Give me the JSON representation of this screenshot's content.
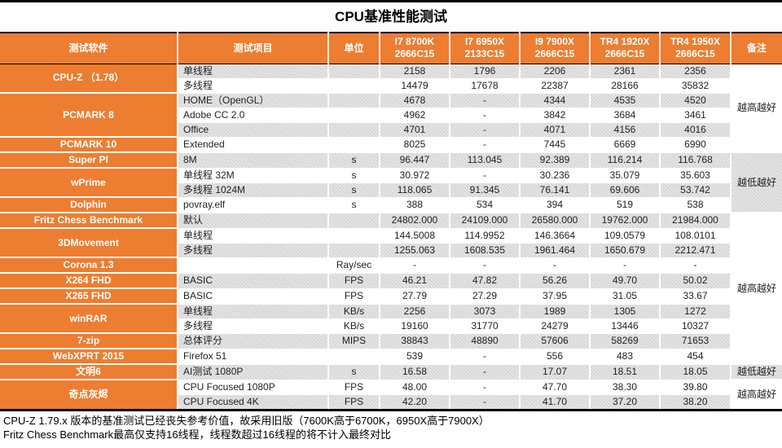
{
  "title": "CPU基准性能测试",
  "colors": {
    "header_orange": "#ED7D31",
    "row_gray": "#D8D8D8",
    "row_white": "#FFFFFF",
    "border_black": "#000000",
    "header_text": "#FFFFFF",
    "body_text": "#1F1F1F"
  },
  "footnotes": [
    "CPU-Z 1.79.x 版本的基准测试已经丧失参考价值，故采用旧版（7600K高于6700K，6950X高于7900X）",
    "Fritz Chess Benchmark最高仅支持16线程，线程数超过16线程的将不计入最终对比"
  ],
  "chart_data": {
    "type": "table",
    "title": "CPU基准性能测试",
    "column_headers": [
      "测试软件",
      "测试项目",
      "单位",
      "I7 8700K\n2666C15",
      "I7 6950X\n2133C15",
      "I9 7900X\n2666C15",
      "TR4 1920X\n2666C15",
      "TR4 1950X\n2666C15",
      "备注"
    ],
    "software_groups": [
      {
        "label": "CPU-Z （1.78）",
        "rows": 2
      },
      {
        "label": "PCMARK 8",
        "rows": 3
      },
      {
        "label": "PCMARK 10",
        "rows": 1
      },
      {
        "label": "Super PI",
        "rows": 1
      },
      {
        "label": "wPrime",
        "rows": 2
      },
      {
        "label": "Dolphin",
        "rows": 1
      },
      {
        "label": "Fritz Chess Benchmark",
        "rows": 1
      },
      {
        "label": "3DMovement",
        "rows": 2
      },
      {
        "label": "Corona 1.3",
        "rows": 1
      },
      {
        "label": "X264 FHD",
        "rows": 1
      },
      {
        "label": "X265 FHD",
        "rows": 1
      },
      {
        "label": "winRAR",
        "rows": 2
      },
      {
        "label": "7-zip",
        "rows": 1
      },
      {
        "label": "WebXPRT 2015",
        "rows": 1
      },
      {
        "label": "文明6",
        "rows": 1
      },
      {
        "label": "奇点灰烬",
        "rows": 2
      }
    ],
    "rows": [
      {
        "item": "单线程",
        "unit": "",
        "values": [
          "2158",
          "1796",
          "2206",
          "2361",
          "2356"
        ]
      },
      {
        "item": "多线程",
        "unit": "",
        "values": [
          "14479",
          "17678",
          "22387",
          "28166",
          "35832"
        ]
      },
      {
        "item": "HOME（OpenGL）",
        "unit": "",
        "values": [
          "4678",
          "-",
          "4344",
          "4535",
          "4520"
        ]
      },
      {
        "item": "Adobe CC 2.0",
        "unit": "",
        "values": [
          "4962",
          "-",
          "3842",
          "3684",
          "3461"
        ]
      },
      {
        "item": "Office",
        "unit": "",
        "values": [
          "4701",
          "-",
          "4071",
          "4156",
          "4016"
        ]
      },
      {
        "item": "Extended",
        "unit": "",
        "values": [
          "8025",
          "-",
          "7445",
          "6669",
          "6990"
        ]
      },
      {
        "item": "8M",
        "unit": "s",
        "values": [
          "96.447",
          "113.045",
          "92.389",
          "116.214",
          "116.768"
        ]
      },
      {
        "item": "单线程 32M",
        "unit": "s",
        "values": [
          "30.972",
          "-",
          "30.236",
          "35.079",
          "35.603"
        ]
      },
      {
        "item": "多线程 1024M",
        "unit": "s",
        "values": [
          "118.065",
          "91.345",
          "76.141",
          "69.606",
          "53.742"
        ]
      },
      {
        "item": "povray.elf",
        "unit": "s",
        "values": [
          "388",
          "534",
          "394",
          "519",
          "538"
        ]
      },
      {
        "item": "默认",
        "unit": "",
        "values": [
          "24802.000",
          "24109.000",
          "26580.000",
          "19762.000",
          "21984.000"
        ]
      },
      {
        "item": "单线程",
        "unit": "",
        "values": [
          "144.5008",
          "114.9952",
          "146.3664",
          "109.0579",
          "108.0101"
        ]
      },
      {
        "item": "多线程",
        "unit": "",
        "values": [
          "1255.063",
          "1608.535",
          "1961.464",
          "1650.679",
          "2212.471"
        ]
      },
      {
        "item": "",
        "unit": "Ray/sec",
        "values": [
          "-",
          "-",
          "-",
          "-",
          "-"
        ]
      },
      {
        "item": "BASIC",
        "unit": "FPS",
        "values": [
          "46.21",
          "47.82",
          "56.26",
          "49.70",
          "50.02"
        ]
      },
      {
        "item": "BASIC",
        "unit": "FPS",
        "values": [
          "27.79",
          "27.29",
          "37.95",
          "31.05",
          "33.67"
        ]
      },
      {
        "item": "单线程",
        "unit": "KB/s",
        "values": [
          "2256",
          "3073",
          "1989",
          "1305",
          "1272"
        ]
      },
      {
        "item": "多线程",
        "unit": "KB/s",
        "values": [
          "19160",
          "31770",
          "24279",
          "13446",
          "10327"
        ]
      },
      {
        "item": "总体评分",
        "unit": "MIPS",
        "values": [
          "38843",
          "48890",
          "57606",
          "58269",
          "71653"
        ]
      },
      {
        "item": "Firefox 51",
        "unit": "",
        "values": [
          "539",
          "-",
          "556",
          "483",
          "454"
        ]
      },
      {
        "item": "AI测试 1080P",
        "unit": "s",
        "values": [
          "16.58",
          "-",
          "17.07",
          "18.51",
          "18.05"
        ]
      },
      {
        "item": "CPU Focused 1080P",
        "unit": "FPS",
        "values": [
          "48.00",
          "-",
          "47.70",
          "38.30",
          "39.80"
        ]
      },
      {
        "item": "CPU Focused 4K",
        "unit": "FPS",
        "values": [
          "42.20",
          "-",
          "41.70",
          "37.20",
          "38.20"
        ]
      }
    ],
    "remark_groups": [
      {
        "label": "越高越好",
        "rows": 6
      },
      {
        "label": "越低越好",
        "rows": 4
      },
      {
        "label": "越高越好",
        "rows": 10
      },
      {
        "label": "越低越好",
        "rows": 1
      },
      {
        "label": "越高越好",
        "rows": 2
      }
    ]
  }
}
